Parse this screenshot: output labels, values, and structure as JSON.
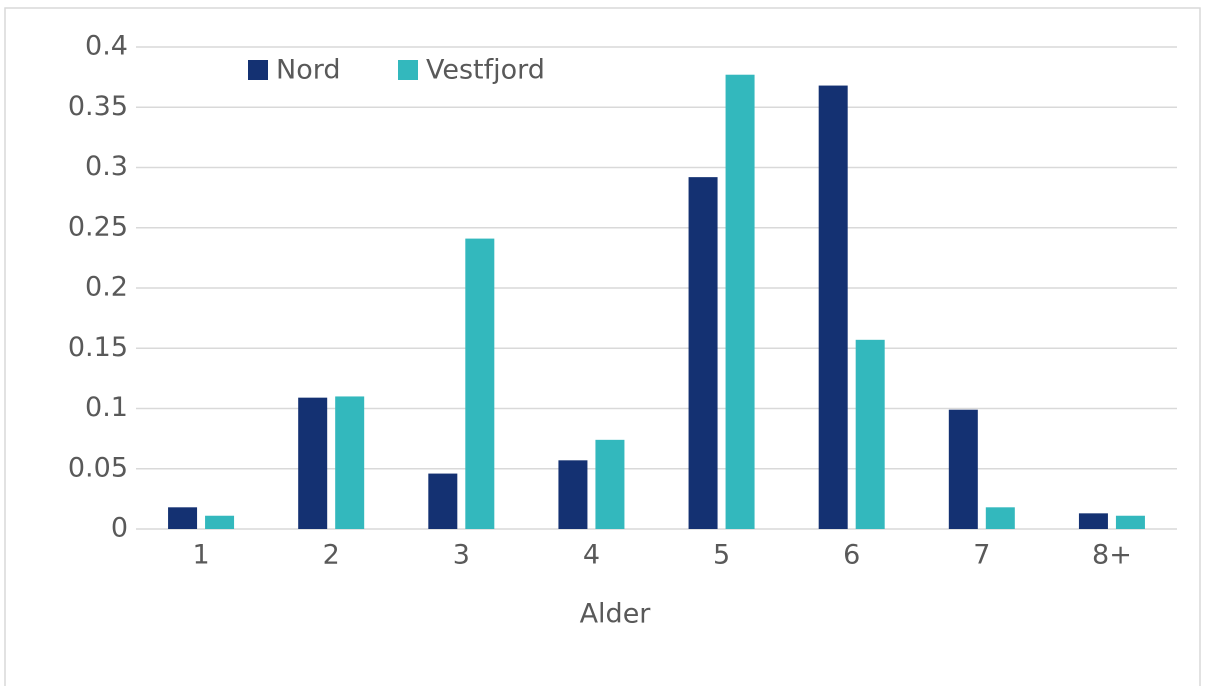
{
  "chart_data": {
    "type": "bar",
    "x_label": "Alder",
    "categories": [
      "1",
      "2",
      "3",
      "4",
      "5",
      "6",
      "7",
      "8+"
    ],
    "series": [
      {
        "name": "Nord",
        "color": "#143172",
        "values": [
          0.018,
          0.109,
          0.046,
          0.057,
          0.292,
          0.368,
          0.099,
          0.013
        ]
      },
      {
        "name": "Vestfjord",
        "color": "#33b8bd",
        "values": [
          0.011,
          0.11,
          0.241,
          0.074,
          0.377,
          0.157,
          0.018,
          0.011
        ]
      }
    ],
    "ylim": [
      0,
      0.4
    ],
    "yticks": [
      0,
      0.05,
      0.1,
      0.15,
      0.2,
      0.25,
      0.3,
      0.35,
      0.4
    ],
    "grid": true,
    "legend": "top-left"
  }
}
